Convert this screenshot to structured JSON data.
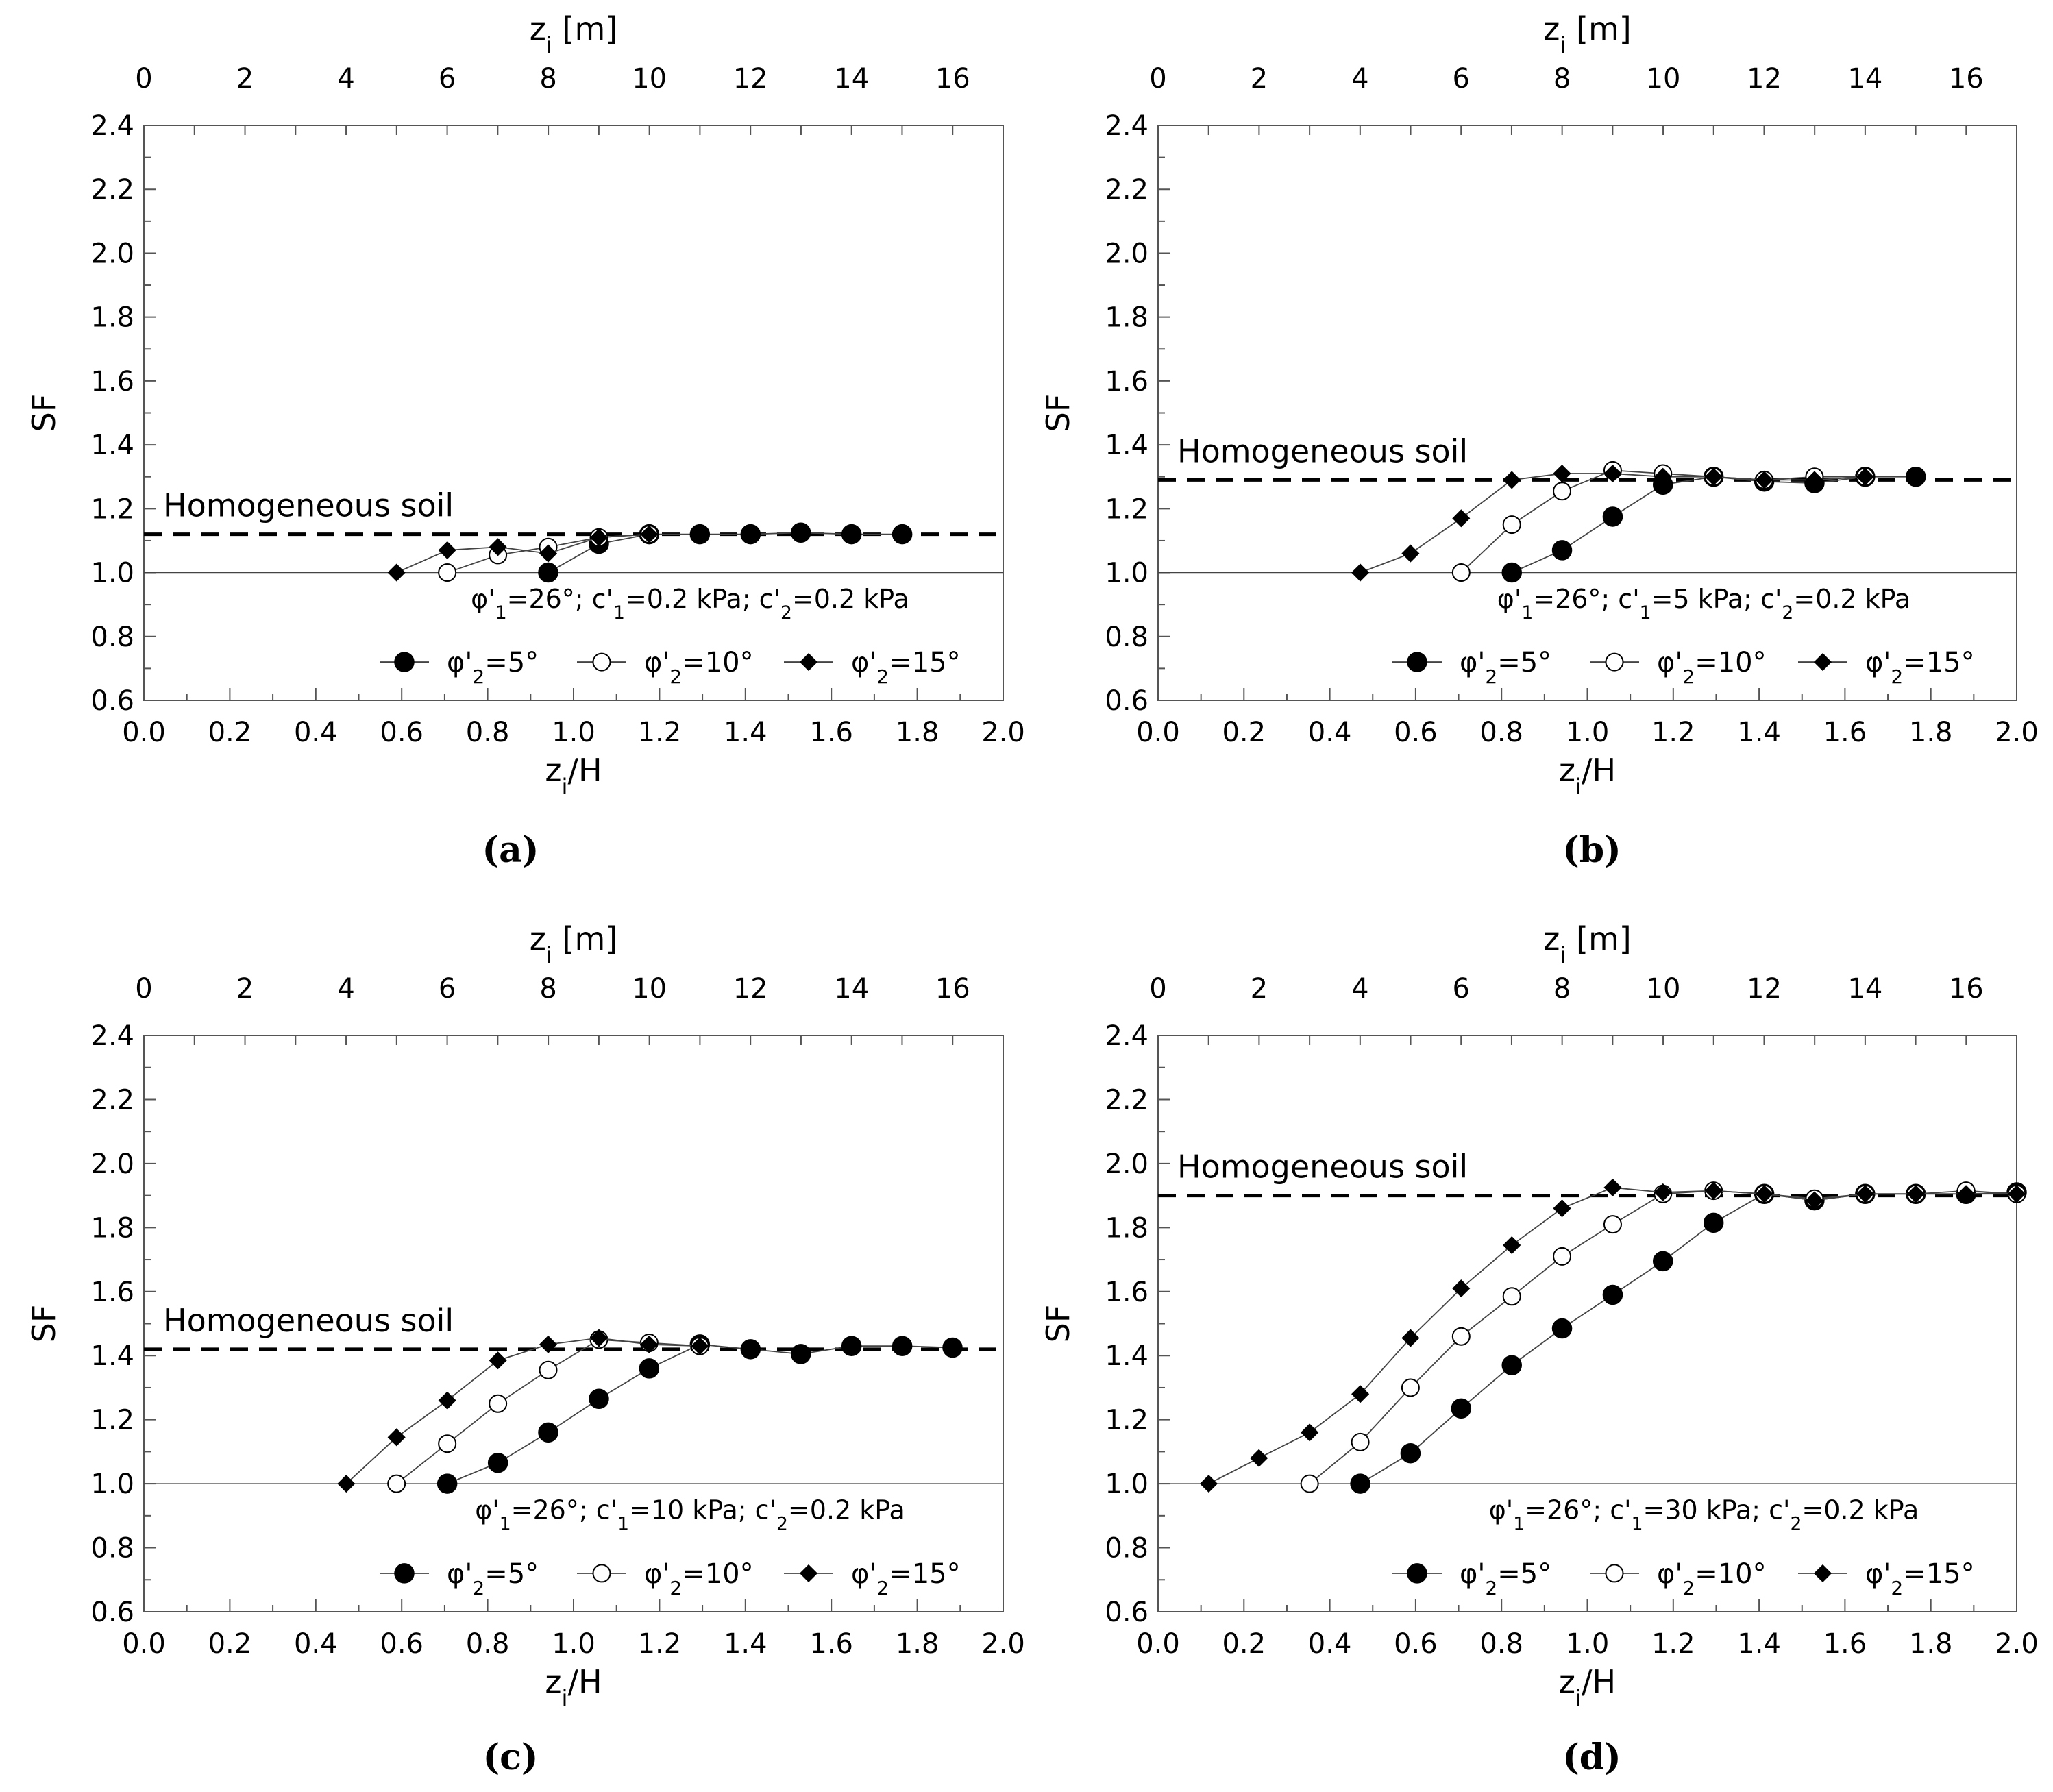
{
  "chart_data": [
    {
      "type": "line",
      "panel_label": "(a)",
      "xlabel_main": "z",
      "xlabel_sub": "i",
      "xlabel_suffix": "/H",
      "x2label_main": "z",
      "x2label_sub": "i",
      "x2label_suffix": " [m]",
      "ylabel": "SF",
      "xlim": [
        0,
        2.0
      ],
      "ylim": [
        0.6,
        2.4
      ],
      "x2lim": [
        0,
        17
      ],
      "xticks": [
        "0.0",
        "0.2",
        "0.4",
        "0.6",
        "0.8",
        "1.0",
        "1.2",
        "1.4",
        "1.6",
        "1.8",
        "2.0"
      ],
      "yticks": [
        "0.6",
        "0.8",
        "1.0",
        "1.2",
        "1.4",
        "1.6",
        "1.8",
        "2.0",
        "2.2",
        "2.4"
      ],
      "x2ticks": [
        "0",
        "2",
        "4",
        "6",
        "8",
        "10",
        "12",
        "14",
        "16"
      ],
      "reference_line": {
        "label": "Homogeneous soil",
        "y": 1.12
      },
      "baseline": 1.0,
      "annotation": "φ'1=26°; c'1=0.2 kPa; c'2=0.2 kPa",
      "series": [
        {
          "name": "φ'2=5°",
          "marker": "filled-circle",
          "x": [
            0.941,
            1.059,
            1.176,
            1.294,
            1.412,
            1.529,
            1.647,
            1.765
          ],
          "y": [
            1.0,
            1.09,
            1.12,
            1.12,
            1.12,
            1.125,
            1.12,
            1.12
          ]
        },
        {
          "name": "φ'2=10°",
          "marker": "open-circle",
          "x": [
            0.706,
            0.824,
            0.941,
            1.059,
            1.176
          ],
          "y": [
            1.0,
            1.055,
            1.08,
            1.11,
            1.12
          ]
        },
        {
          "name": "φ'2=15°",
          "marker": "filled-diamond",
          "x": [
            0.588,
            0.706,
            0.824,
            0.941,
            1.059,
            1.176
          ],
          "y": [
            1.0,
            1.07,
            1.08,
            1.06,
            1.11,
            1.12
          ]
        }
      ]
    },
    {
      "type": "line",
      "panel_label": "(b)",
      "xlabel_main": "z",
      "xlabel_sub": "i",
      "xlabel_suffix": "/H",
      "x2label_main": "z",
      "x2label_sub": "i",
      "x2label_suffix": " [m]",
      "ylabel": "SF",
      "xlim": [
        0,
        2.0
      ],
      "ylim": [
        0.6,
        2.4
      ],
      "x2lim": [
        0,
        17
      ],
      "xticks": [
        "0.0",
        "0.2",
        "0.4",
        "0.6",
        "0.8",
        "1.0",
        "1.2",
        "1.4",
        "1.6",
        "1.8",
        "2.0"
      ],
      "yticks": [
        "0.6",
        "0.8",
        "1.0",
        "1.2",
        "1.4",
        "1.6",
        "1.8",
        "2.0",
        "2.2",
        "2.4"
      ],
      "x2ticks": [
        "0",
        "2",
        "4",
        "6",
        "8",
        "10",
        "12",
        "14",
        "16"
      ],
      "reference_line": {
        "label": "Homogeneous soil",
        "y": 1.29
      },
      "baseline": 1.0,
      "annotation": "φ'1=26°; c'1=5 kPa; c'2=0.2 kPa",
      "series": [
        {
          "name": "φ'2=5°",
          "marker": "filled-circle",
          "x": [
            0.824,
            0.941,
            1.059,
            1.176,
            1.294,
            1.412,
            1.529,
            1.647,
            1.765
          ],
          "y": [
            1.0,
            1.07,
            1.175,
            1.275,
            1.3,
            1.285,
            1.28,
            1.3,
            1.3
          ]
        },
        {
          "name": "φ'2=10°",
          "marker": "open-circle",
          "x": [
            0.706,
            0.824,
            0.941,
            1.059,
            1.176,
            1.294,
            1.412,
            1.529,
            1.647
          ],
          "y": [
            1.0,
            1.15,
            1.255,
            1.32,
            1.31,
            1.3,
            1.29,
            1.3,
            1.3
          ]
        },
        {
          "name": "φ'2=15°",
          "marker": "filled-diamond",
          "x": [
            0.471,
            0.588,
            0.706,
            0.824,
            0.941,
            1.059,
            1.176,
            1.294,
            1.412,
            1.529,
            1.647
          ],
          "y": [
            1.0,
            1.06,
            1.17,
            1.29,
            1.31,
            1.31,
            1.3,
            1.3,
            1.29,
            1.29,
            1.3
          ]
        }
      ]
    },
    {
      "type": "line",
      "panel_label": "(c)",
      "xlabel_main": "z",
      "xlabel_sub": "i",
      "xlabel_suffix": "/H",
      "x2label_main": "z",
      "x2label_sub": "i",
      "x2label_suffix": " [m]",
      "ylabel": "SF",
      "xlim": [
        0,
        2.0
      ],
      "ylim": [
        0.6,
        2.4
      ],
      "x2lim": [
        0,
        17
      ],
      "xticks": [
        "0.0",
        "0.2",
        "0.4",
        "0.6",
        "0.8",
        "1.0",
        "1.2",
        "1.4",
        "1.6",
        "1.8",
        "2.0"
      ],
      "yticks": [
        "0.6",
        "0.8",
        "1.0",
        "1.2",
        "1.4",
        "1.6",
        "1.8",
        "2.0",
        "2.2",
        "2.4"
      ],
      "x2ticks": [
        "0",
        "2",
        "4",
        "6",
        "8",
        "10",
        "12",
        "14",
        "16"
      ],
      "reference_line": {
        "label": "Homogeneous soil",
        "y": 1.42
      },
      "baseline": 1.0,
      "annotation": "φ'1=26°; c'1=10 kPa; c'2=0.2 kPa",
      "series": [
        {
          "name": "φ'2=5°",
          "marker": "filled-circle",
          "x": [
            0.706,
            0.824,
            0.941,
            1.059,
            1.176,
            1.294,
            1.412,
            1.529,
            1.647,
            1.765,
            1.882
          ],
          "y": [
            1.0,
            1.065,
            1.16,
            1.265,
            1.36,
            1.435,
            1.42,
            1.405,
            1.43,
            1.43,
            1.425
          ]
        },
        {
          "name": "φ'2=10°",
          "marker": "open-circle",
          "x": [
            0.588,
            0.706,
            0.824,
            0.941,
            1.059,
            1.176,
            1.294
          ],
          "y": [
            1.0,
            1.125,
            1.25,
            1.355,
            1.45,
            1.44,
            1.43
          ]
        },
        {
          "name": "φ'2=15°",
          "marker": "filled-diamond",
          "x": [
            0.471,
            0.588,
            0.706,
            0.824,
            0.941,
            1.059,
            1.176,
            1.294
          ],
          "y": [
            1.0,
            1.145,
            1.26,
            1.385,
            1.435,
            1.455,
            1.435,
            1.43
          ]
        }
      ]
    },
    {
      "type": "line",
      "panel_label": "(d)",
      "xlabel_main": "z",
      "xlabel_sub": "i",
      "xlabel_suffix": "/H",
      "x2label_main": "z",
      "x2label_sub": "i",
      "x2label_suffix": " [m]",
      "ylabel": "SF",
      "xlim": [
        0,
        2.0
      ],
      "ylim": [
        0.6,
        2.4
      ],
      "x2lim": [
        0,
        17
      ],
      "xticks": [
        "0.0",
        "0.2",
        "0.4",
        "0.6",
        "0.8",
        "1.0",
        "1.2",
        "1.4",
        "1.6",
        "1.8",
        "2.0"
      ],
      "yticks": [
        "0.6",
        "0.8",
        "1.0",
        "1.2",
        "1.4",
        "1.6",
        "1.8",
        "2.0",
        "2.2",
        "2.4"
      ],
      "x2ticks": [
        "0",
        "2",
        "4",
        "6",
        "8",
        "10",
        "12",
        "14",
        "16"
      ],
      "reference_line": {
        "label": "Homogeneous soil",
        "y": 1.9
      },
      "baseline": 1.0,
      "annotation": "φ'1=26°; c'1=30 kPa; c'2=0.2 kPa",
      "series": [
        {
          "name": "φ'2=5°",
          "marker": "filled-circle",
          "x": [
            0.471,
            0.588,
            0.706,
            0.824,
            0.941,
            1.059,
            1.176,
            1.294,
            1.412,
            1.529,
            1.647,
            1.765,
            1.882,
            2.0
          ],
          "y": [
            1.0,
            1.095,
            1.235,
            1.37,
            1.485,
            1.59,
            1.695,
            1.815,
            1.905,
            1.885,
            1.905,
            1.905,
            1.905,
            1.91
          ]
        },
        {
          "name": "φ'2=10°",
          "marker": "open-circle",
          "x": [
            0.353,
            0.471,
            0.588,
            0.706,
            0.824,
            0.941,
            1.059,
            1.176,
            1.294,
            1.412,
            1.529,
            1.647,
            1.765,
            1.882,
            2.0
          ],
          "y": [
            1.0,
            1.13,
            1.3,
            1.46,
            1.585,
            1.71,
            1.81,
            1.905,
            1.915,
            1.905,
            1.89,
            1.905,
            1.905,
            1.915,
            1.905
          ]
        },
        {
          "name": "φ'2=15°",
          "marker": "filled-diamond",
          "x": [
            0.118,
            0.235,
            0.353,
            0.471,
            0.588,
            0.706,
            0.824,
            0.941,
            1.059,
            1.176,
            1.294,
            1.412,
            1.529,
            1.647,
            1.765,
            1.882,
            2.0
          ],
          "y": [
            1.0,
            1.08,
            1.16,
            1.28,
            1.455,
            1.61,
            1.745,
            1.86,
            1.925,
            1.91,
            1.915,
            1.905,
            1.885,
            1.905,
            1.905,
            1.905,
            1.905
          ]
        }
      ]
    }
  ]
}
